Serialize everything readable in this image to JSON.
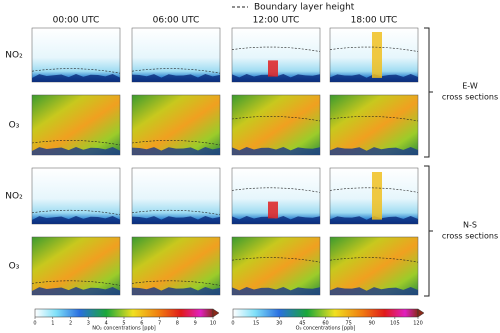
{
  "legend": {
    "label": "Boundary layer height"
  },
  "columns": [
    "00:00 UTC",
    "06:00 UTC",
    "12:00 UTC",
    "18:00 UTC"
  ],
  "rows": [
    "NO₂",
    "O₃",
    "NO₂",
    "O₃"
  ],
  "groups": [
    {
      "name": "E-W",
      "subtitle": "cross sections"
    },
    {
      "name": "N-S",
      "subtitle": "cross sections"
    }
  ],
  "colorbars": [
    {
      "label": "NO₂ concentrations [ppb]",
      "lim": [
        0,
        10
      ],
      "ticks": [
        0,
        1,
        2,
        3,
        4,
        5,
        6,
        7,
        8,
        9,
        10
      ]
    },
    {
      "label": "O₃ concentrations [ppb]",
      "lim": [
        0,
        120
      ],
      "ticks": [
        0,
        15,
        30,
        45,
        60,
        75,
        90,
        105,
        120
      ]
    }
  ]
}
